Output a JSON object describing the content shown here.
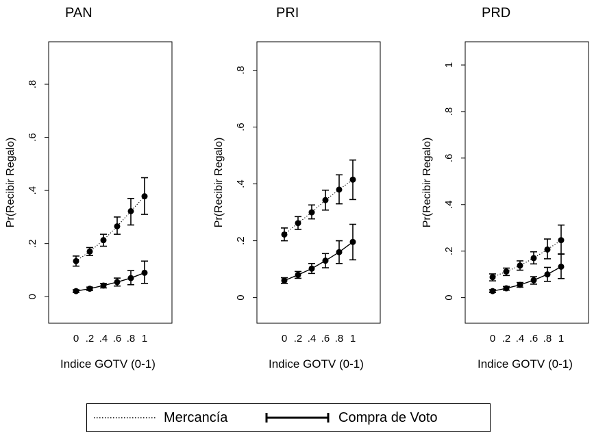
{
  "chart_data": [
    {
      "type": "line",
      "title": "PAN",
      "xlabel": "Indice GOTV (0-1)",
      "ylabel": "Pr(Recibir Regalo)",
      "x": [
        0,
        0.2,
        0.4,
        0.6,
        0.8,
        1
      ],
      "xticks": [
        "0",
        ".2",
        ".4",
        ".6",
        ".8",
        "1"
      ],
      "yticks": [
        "0",
        ".2",
        ".4",
        ".6",
        ".8"
      ],
      "yticks_values": [
        0,
        0.2,
        0.4,
        0.6,
        0.8
      ],
      "xlim": [
        -0.4,
        1.4
      ],
      "ylim": [
        -0.1,
        0.96
      ],
      "series": [
        {
          "name": "Mercancía",
          "style": "dotted",
          "values": [
            0.134,
            0.17,
            0.213,
            0.265,
            0.322,
            0.378
          ],
          "lower": [
            0.115,
            0.155,
            0.19,
            0.235,
            0.27,
            0.31
          ],
          "upper": [
            0.153,
            0.185,
            0.235,
            0.3,
            0.37,
            0.448
          ]
        },
        {
          "name": "Compra de Voto",
          "style": "solid",
          "values": [
            0.021,
            0.03,
            0.042,
            0.055,
            0.07,
            0.09
          ],
          "lower": [
            0.016,
            0.024,
            0.033,
            0.04,
            0.045,
            0.05
          ],
          "upper": [
            0.026,
            0.036,
            0.05,
            0.07,
            0.098,
            0.134
          ]
        }
      ]
    },
    {
      "type": "line",
      "title": "PRI",
      "xlabel": "Indice GOTV (0-1)",
      "ylabel": "Pr(Recibir Regalo)",
      "x": [
        0,
        0.2,
        0.4,
        0.6,
        0.8,
        1
      ],
      "xticks": [
        "0",
        ".2",
        ".4",
        ".6",
        ".8",
        "1"
      ],
      "yticks": [
        "0",
        ".2",
        ".4",
        ".6",
        ".8"
      ],
      "yticks_values": [
        0,
        0.2,
        0.4,
        0.6,
        0.8
      ],
      "xlim": [
        -0.4,
        1.4
      ],
      "ylim": [
        -0.09,
        0.9
      ],
      "series": [
        {
          "name": "Mercancía",
          "style": "dotted",
          "values": [
            0.222,
            0.262,
            0.3,
            0.343,
            0.38,
            0.415
          ],
          "lower": [
            0.2,
            0.24,
            0.277,
            0.308,
            0.33,
            0.345
          ],
          "upper": [
            0.245,
            0.285,
            0.326,
            0.378,
            0.432,
            0.484
          ]
        },
        {
          "name": "Compra de Voto",
          "style": "solid",
          "values": [
            0.06,
            0.08,
            0.102,
            0.13,
            0.16,
            0.196
          ],
          "lower": [
            0.05,
            0.068,
            0.085,
            0.105,
            0.12,
            0.133
          ],
          "upper": [
            0.07,
            0.092,
            0.12,
            0.155,
            0.2,
            0.258
          ]
        }
      ]
    },
    {
      "type": "line",
      "title": "PRD",
      "xlabel": "Indice GOTV (0-1)",
      "ylabel": "Pr(Recibir Regalo)",
      "x": [
        0,
        0.2,
        0.4,
        0.6,
        0.8,
        1
      ],
      "xticks": [
        "0",
        ".2",
        ".4",
        ".6",
        ".8",
        "1"
      ],
      "yticks": [
        "0",
        ".2",
        ".4",
        ".6",
        ".8",
        "1"
      ],
      "yticks_values": [
        0,
        0.2,
        0.4,
        0.6,
        0.8,
        1
      ],
      "xlim": [
        -0.4,
        1.4
      ],
      "ylim": [
        -0.11,
        1.1
      ],
      "series": [
        {
          "name": "Mercancía",
          "style": "dotted",
          "values": [
            0.088,
            0.112,
            0.138,
            0.17,
            0.207,
            0.247
          ],
          "lower": [
            0.072,
            0.095,
            0.118,
            0.145,
            0.167,
            0.187
          ],
          "upper": [
            0.102,
            0.127,
            0.158,
            0.197,
            0.252,
            0.312
          ]
        },
        {
          "name": "Compra de Voto",
          "style": "solid",
          "values": [
            0.028,
            0.04,
            0.055,
            0.075,
            0.1,
            0.133
          ],
          "lower": [
            0.022,
            0.032,
            0.045,
            0.058,
            0.07,
            0.082
          ],
          "upper": [
            0.034,
            0.048,
            0.065,
            0.09,
            0.13,
            0.188
          ]
        }
      ]
    }
  ],
  "legend": {
    "items": [
      {
        "label": "Mercancía",
        "style": "dotted"
      },
      {
        "label": "Compra de Voto",
        "style": "solid"
      }
    ]
  }
}
